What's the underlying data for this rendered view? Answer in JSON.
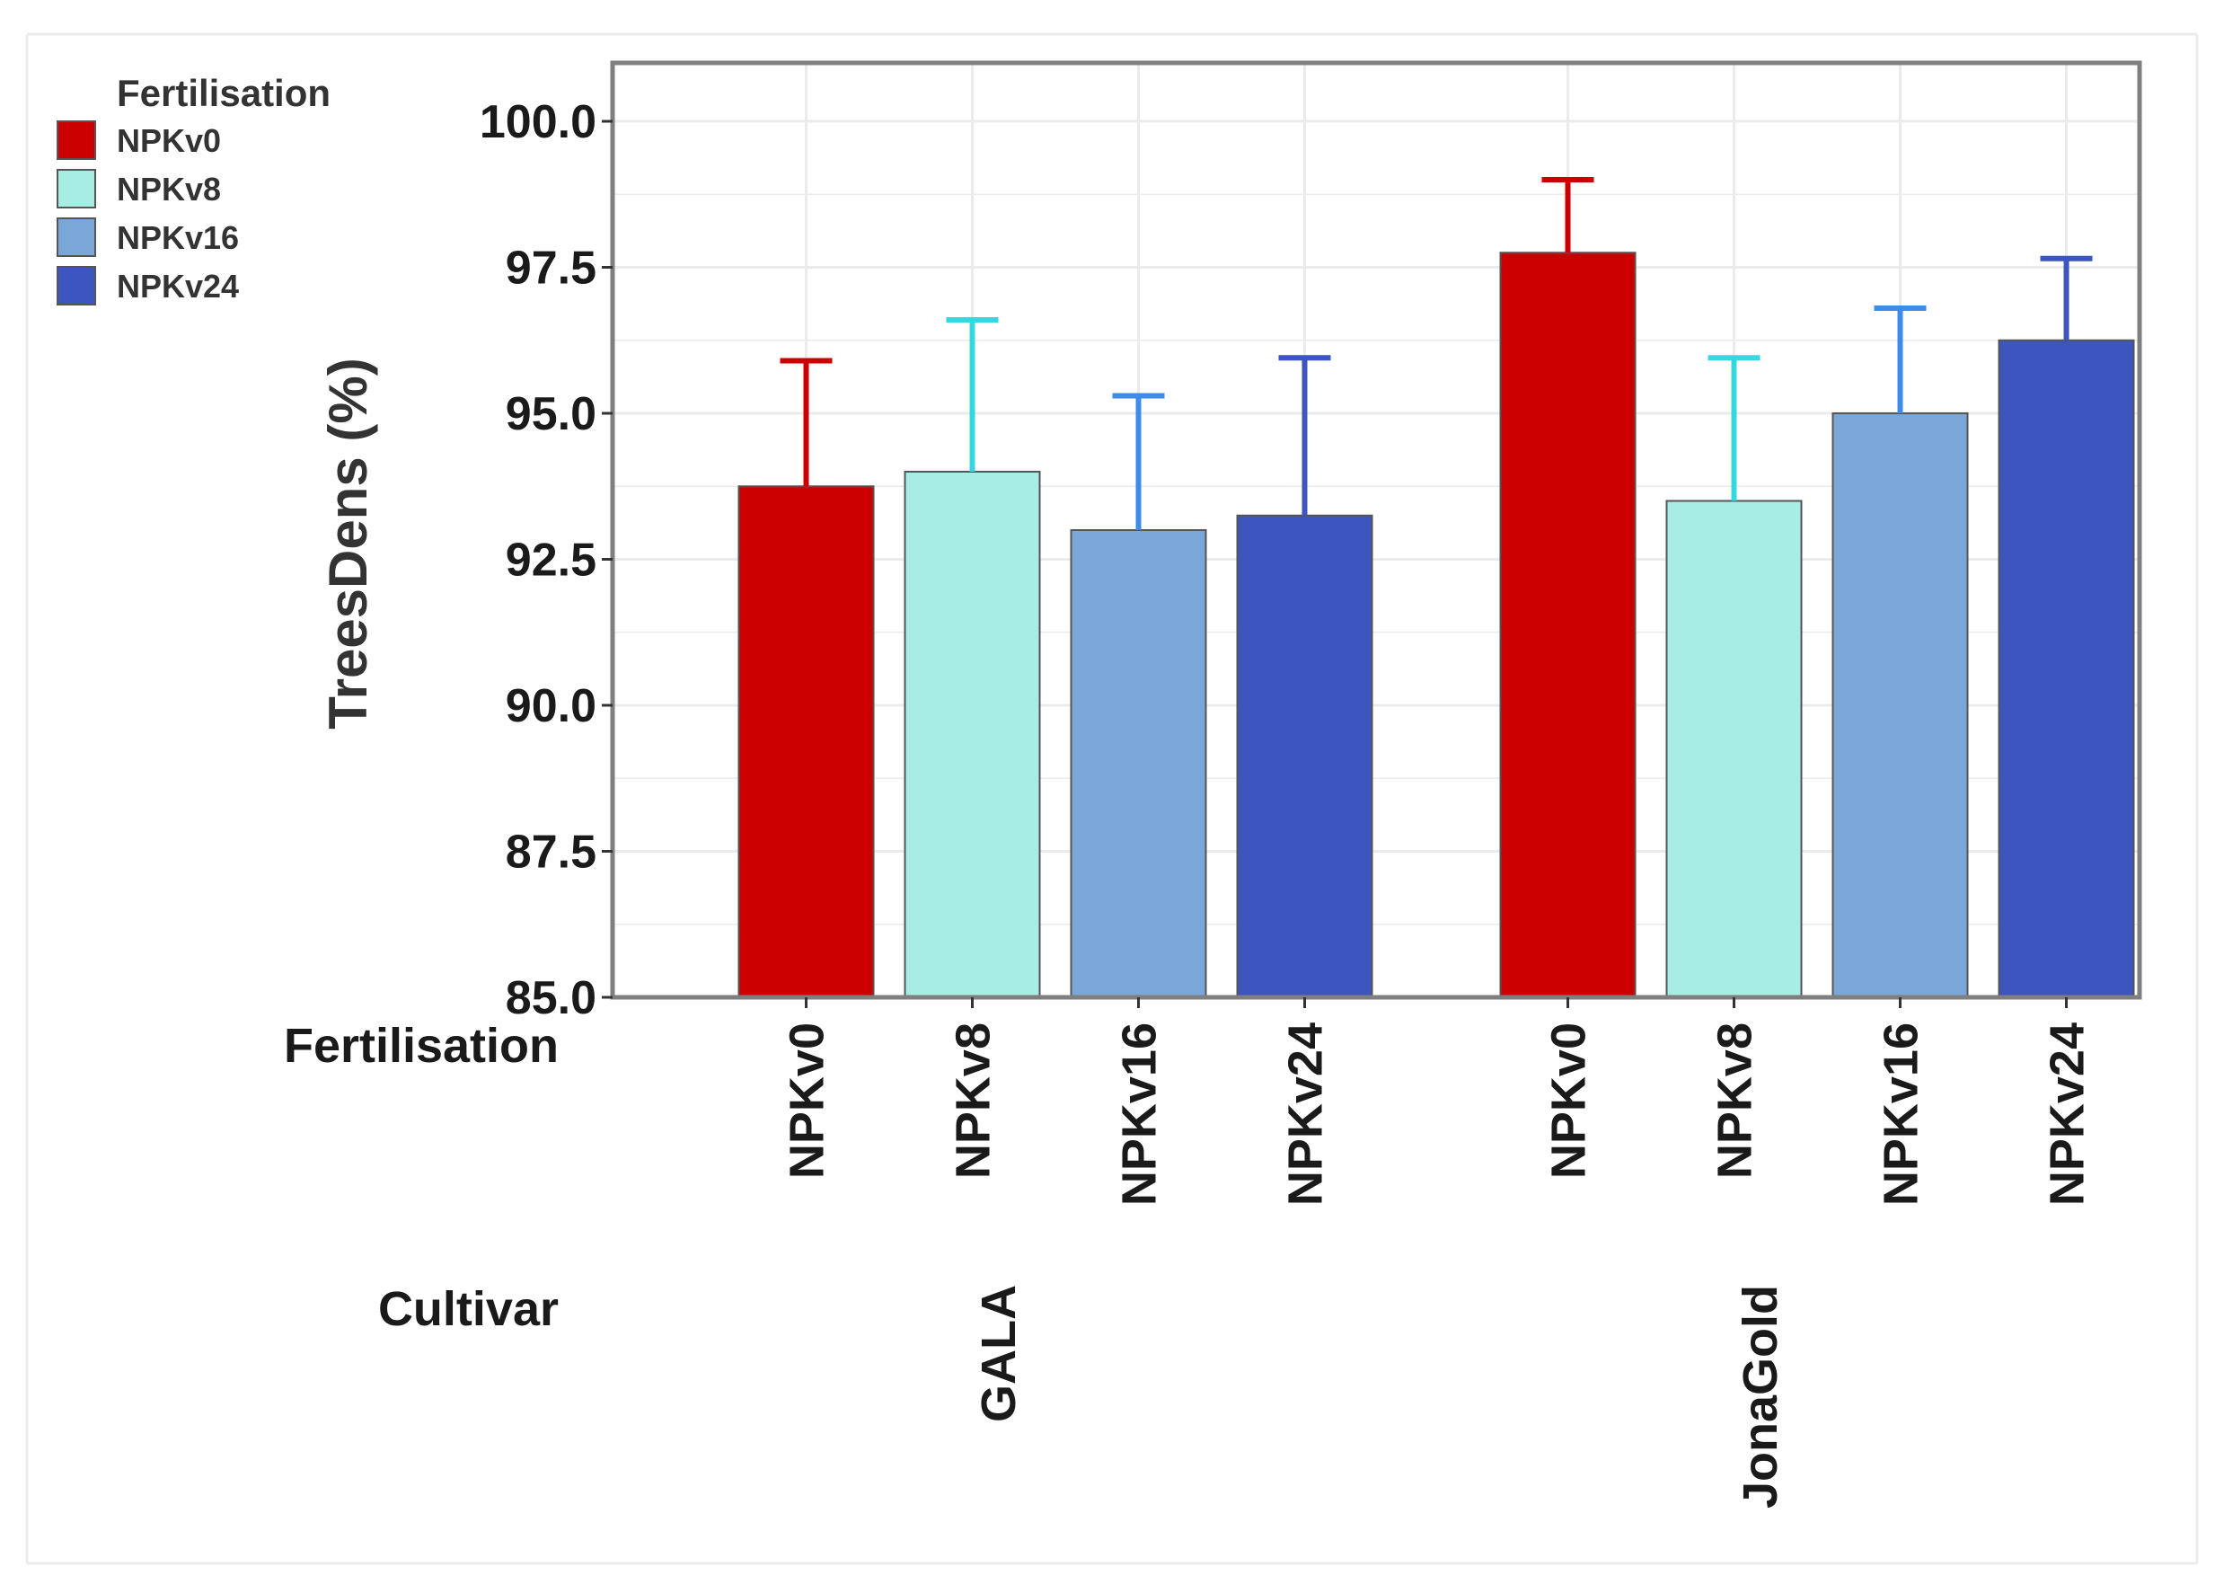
{
  "chart_data": {
    "type": "bar",
    "ylabel": "TreesDens (%)",
    "ylim": [
      85.0,
      101.0
    ],
    "yticks": [
      "85.0",
      "87.5",
      "90.0",
      "92.5",
      "95.0",
      "97.5",
      "100.0"
    ],
    "ytick_values": [
      85.0,
      87.5,
      90.0,
      92.5,
      95.0,
      97.5,
      100.0
    ],
    "grid": true,
    "legend": {
      "title": "Fertilisation",
      "position": "top-left",
      "entries": [
        {
          "label": "NPKv0",
          "color": "#CC0000"
        },
        {
          "label": "NPKv8",
          "color": "#A8EDE3"
        },
        {
          "label": "NPKv16",
          "color": "#7BA7D8"
        },
        {
          "label": "NPKv24",
          "color": "#3C55BF"
        }
      ]
    },
    "x_row_labels": {
      "fertilisation": "Fertilisation",
      "cultivar": "Cultivar"
    },
    "categories": [
      "NPKv0",
      "NPKv8",
      "NPKv16",
      "NPKv24"
    ],
    "groups": [
      {
        "cultivar": "GALA",
        "bars": [
          {
            "fertilisation": "NPKv0",
            "value": 93.75,
            "upper": 95.9
          },
          {
            "fertilisation": "NPKv8",
            "value": 94.0,
            "upper": 96.6
          },
          {
            "fertilisation": "NPKv16",
            "value": 93.0,
            "upper": 95.3
          },
          {
            "fertilisation": "NPKv24",
            "value": 93.25,
            "upper": 95.95
          }
        ]
      },
      {
        "cultivar": "JonaGold",
        "bars": [
          {
            "fertilisation": "NPKv0",
            "value": 97.75,
            "upper": 99.0
          },
          {
            "fertilisation": "NPKv8",
            "value": 93.5,
            "upper": 95.95
          },
          {
            "fertilisation": "NPKv16",
            "value": 95.0,
            "upper": 96.8
          },
          {
            "fertilisation": "NPKv24",
            "value": 96.25,
            "upper": 97.65
          }
        ]
      }
    ],
    "colors": {
      "bar_fill": [
        "#CC0000",
        "#A8EDE3",
        "#7BA7D8",
        "#3C55BF"
      ],
      "error_bar": [
        "#CC0000",
        "#33D8E0",
        "#3F8BE6",
        "#3C55BF"
      ],
      "panel_border": "#7F7F7F",
      "grid": "#EBEBEB",
      "text": "#1A1A1A"
    }
  }
}
